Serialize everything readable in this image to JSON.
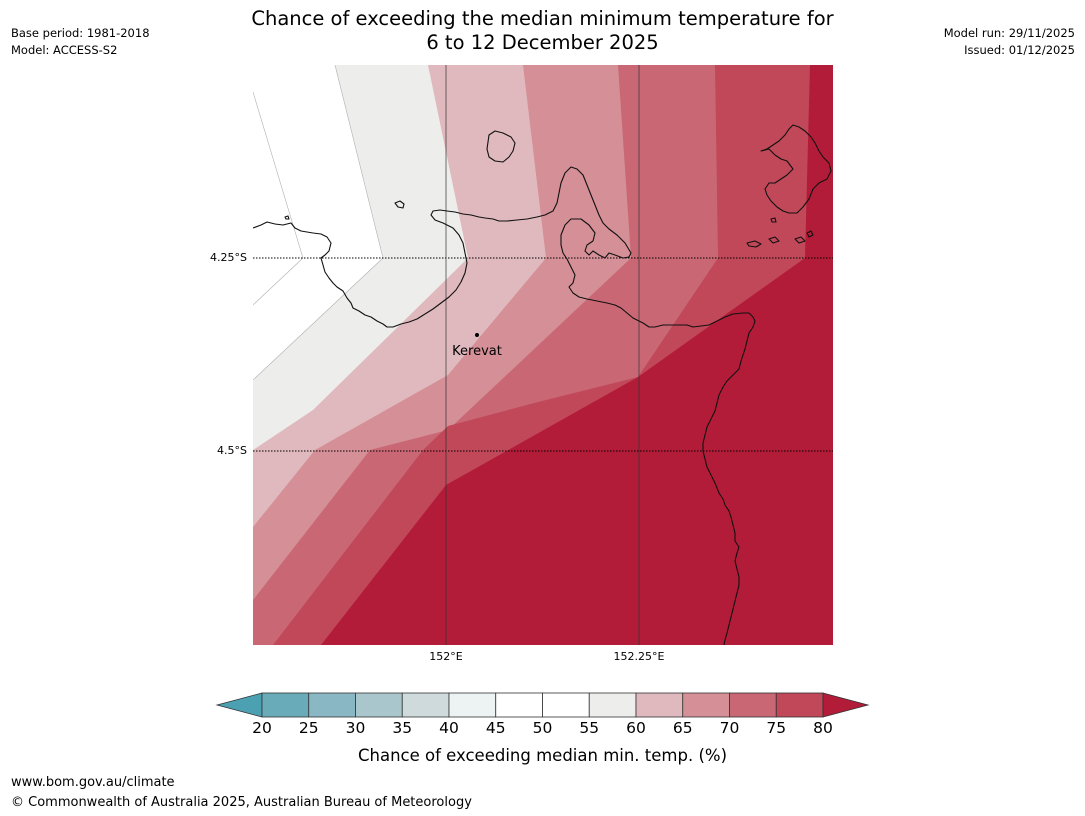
{
  "header": {
    "title_line1": "Chance of exceeding the median minimum temperature for",
    "title_line2": "6 to 12 December 2025",
    "base_period": "Base period: 1981-2018",
    "model": "Model: ACCESS-S2",
    "model_run": "Model run: 29/11/2025",
    "issued": "Issued: 01/12/2025"
  },
  "map": {
    "lat_labels": [
      "4.25°S",
      "4.5°S"
    ],
    "lon_labels": [
      "152°E",
      "152.25°E"
    ],
    "place": {
      "name": "Kerevat"
    },
    "palette": {
      "55": "#ededeb",
      "60": "#e0b9be",
      "65": "#d58f96",
      "70": "#c96874",
      "75": "#c04858",
      "80": "#b21c39"
    }
  },
  "colorbar": {
    "title": "Chance of exceeding median min. temp. (%)",
    "ticks": [
      "20",
      "25",
      "30",
      "35",
      "40",
      "45",
      "50",
      "55",
      "60",
      "65",
      "70",
      "75",
      "80"
    ],
    "under_color": "#4ba0b1",
    "over_color": "#b21c39",
    "colors": [
      "#6aabb9",
      "#8ab7c4",
      "#a8c6cc",
      "#cfdadc",
      "#edf2f3",
      "#ffffff",
      "#ffffff",
      "#ededeb",
      "#e0b9be",
      "#d58f96",
      "#c96874",
      "#c04858"
    ]
  },
  "footer": {
    "url": "www.bom.gov.au/climate",
    "copyright": "© Commonwealth of Australia 2025, Australian Bureau of Meteorology"
  }
}
